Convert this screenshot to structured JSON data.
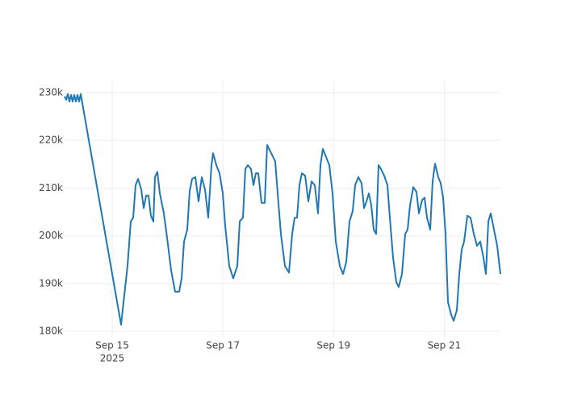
{
  "chart_data": {
    "type": "line",
    "color": "#1f77b4",
    "grid": true,
    "x": [
      "2025-09-14 03:21",
      "2025-09-14 04:03",
      "2025-09-14 04:45",
      "2025-09-14 05:27",
      "2025-09-14 06:09",
      "2025-09-14 06:51",
      "2025-09-14 07:33",
      "2025-09-14 08:15",
      "2025-09-14 08:57",
      "2025-09-14 09:39",
      "2025-09-14 10:21",
      "2025-09-15 03:51",
      "2025-09-15 06:39",
      "2025-09-15 08:03",
      "2025-09-15 09:06",
      "2025-09-15 10:09",
      "2025-09-15 11:12",
      "2025-09-15 12:36",
      "2025-09-15 13:39",
      "2025-09-15 14:42",
      "2025-09-15 15:45",
      "2025-09-15 16:48",
      "2025-09-15 17:51",
      "2025-09-15 18:33",
      "2025-09-15 19:36",
      "2025-09-15 20:39",
      "2025-09-15 22:24",
      "2025-09-15 23:48",
      "2025-09-16 01:33",
      "2025-09-16 03:18",
      "2025-09-16 05:03",
      "2025-09-16 06:06",
      "2025-09-16 07:09",
      "2025-09-16 08:33",
      "2025-09-16 09:36",
      "2025-09-16 10:39",
      "2025-09-16 12:03",
      "2025-09-16 13:27",
      "2025-09-16 14:51",
      "2025-09-16 16:15",
      "2025-09-16 17:39",
      "2025-09-16 19:03",
      "2025-09-16 19:45",
      "2025-09-16 21:09",
      "2025-09-16 22:33",
      "2025-09-16 23:57",
      "2025-09-17 01:00",
      "2025-09-17 02:45",
      "2025-09-17 04:30",
      "2025-09-17 06:15",
      "2025-09-17 07:18",
      "2025-09-17 08:42",
      "2025-09-17 09:45",
      "2025-09-17 10:48",
      "2025-09-17 12:12",
      "2025-09-17 13:15",
      "2025-09-17 14:18",
      "2025-09-17 15:21",
      "2025-09-17 16:45",
      "2025-09-17 18:09",
      "2025-09-17 19:12",
      "2025-09-17 20:57",
      "2025-09-17 22:42",
      "2025-09-17 23:45",
      "2025-09-18 01:09",
      "2025-09-18 02:54",
      "2025-09-18 04:39",
      "2025-09-18 06:03",
      "2025-09-18 07:06",
      "2025-09-18 08:09",
      "2025-09-18 09:12",
      "2025-09-18 10:15",
      "2025-09-18 11:39",
      "2025-09-18 13:03",
      "2025-09-18 14:27",
      "2025-09-18 15:51",
      "2025-09-18 17:15",
      "2025-09-18 18:18",
      "2025-09-18 19:21",
      "2025-09-18 20:45",
      "2025-09-18 22:09",
      "2025-09-18 23:33",
      "2025-09-19 00:57",
      "2025-09-19 02:42",
      "2025-09-19 04:06",
      "2025-09-19 05:30",
      "2025-09-19 06:54",
      "2025-09-19 08:18",
      "2025-09-19 09:21",
      "2025-09-19 10:45",
      "2025-09-19 12:09",
      "2025-09-19 13:12",
      "2025-09-19 14:15",
      "2025-09-19 15:18",
      "2025-09-19 16:21",
      "2025-09-19 17:24",
      "2025-09-19 18:27",
      "2025-09-19 19:30",
      "2025-09-19 20:33",
      "2025-09-19 21:57",
      "2025-09-19 23:21",
      "2025-09-20 00:24",
      "2025-09-20 01:48",
      "2025-09-20 03:12",
      "2025-09-20 04:15",
      "2025-09-20 05:39",
      "2025-09-20 07:03",
      "2025-09-20 08:06",
      "2025-09-20 09:09",
      "2025-09-20 10:33",
      "2025-09-20 11:57",
      "2025-09-20 13:00",
      "2025-09-20 14:24",
      "2025-09-20 15:27",
      "2025-09-20 16:30",
      "2025-09-20 17:54",
      "2025-09-20 18:57",
      "2025-09-20 20:00",
      "2025-09-20 21:24",
      "2025-09-20 22:27",
      "2025-09-20 23:30",
      "2025-09-21 00:33",
      "2025-09-21 01:36",
      "2025-09-21 03:00",
      "2025-09-21 04:03",
      "2025-09-21 05:27",
      "2025-09-21 06:30",
      "2025-09-21 07:33",
      "2025-09-21 08:36",
      "2025-09-21 10:00",
      "2025-09-21 11:24",
      "2025-09-21 12:48",
      "2025-09-21 14:12",
      "2025-09-21 15:36",
      "2025-09-21 17:00",
      "2025-09-21 18:03",
      "2025-09-21 19:06",
      "2025-09-21 20:09",
      "2025-09-21 21:33",
      "2025-09-21 22:57",
      "2025-09-22 00:21"
    ],
    "values": [
      229200,
      228500,
      229700,
      228100,
      229500,
      228100,
      229500,
      228100,
      229500,
      228100,
      229700,
      181400,
      193700,
      203000,
      203800,
      210600,
      211900,
      209700,
      205800,
      208400,
      208400,
      204200,
      203000,
      212300,
      213400,
      208900,
      204700,
      199600,
      192800,
      188300,
      188300,
      191100,
      198800,
      201300,
      209400,
      211900,
      212300,
      207200,
      212300,
      209700,
      203800,
      214800,
      217300,
      214800,
      213100,
      208900,
      202100,
      193700,
      191100,
      193700,
      203000,
      203800,
      214000,
      214800,
      214000,
      210600,
      213100,
      213100,
      206900,
      206900,
      219000,
      217300,
      215600,
      208900,
      200400,
      193700,
      192300,
      200400,
      203800,
      203800,
      210600,
      213100,
      212600,
      207200,
      211400,
      210600,
      204700,
      214800,
      218200,
      216500,
      214800,
      208900,
      198800,
      193700,
      192000,
      194500,
      203000,
      205200,
      210600,
      212300,
      211000,
      205800,
      207200,
      208900,
      206400,
      201300,
      200400,
      214800,
      214000,
      212600,
      210600,
      203800,
      195400,
      190300,
      189300,
      192000,
      200400,
      201300,
      206400,
      210200,
      209200,
      204700,
      207500,
      208000,
      203800,
      201300,
      211400,
      215100,
      212300,
      211000,
      208000,
      200400,
      186100,
      183500,
      182200,
      184400,
      192000,
      197100,
      198800,
      204200,
      203800,
      200400,
      197900,
      198800,
      195400,
      192000,
      203000,
      204700,
      201300,
      197900,
      192000
    ],
    "xlim": [
      "2025-09-14 03:21",
      "2025-09-22 00:21"
    ],
    "xticks": [
      {
        "value": "2025-09-15",
        "label": "Sep 15",
        "year_label": "2025"
      },
      {
        "value": "2025-09-17",
        "label": "Sep 17"
      },
      {
        "value": "2025-09-19",
        "label": "Sep 19"
      },
      {
        "value": "2025-09-21",
        "label": "Sep 21"
      }
    ],
    "ylim": [
      178500,
      232500
    ],
    "yticks": [
      {
        "value": 180000,
        "label": "180k"
      },
      {
        "value": 190000,
        "label": "190k"
      },
      {
        "value": 200000,
        "label": "200k"
      },
      {
        "value": 210000,
        "label": "210k"
      },
      {
        "value": 220000,
        "label": "220k"
      },
      {
        "value": 230000,
        "label": "230k"
      }
    ]
  }
}
